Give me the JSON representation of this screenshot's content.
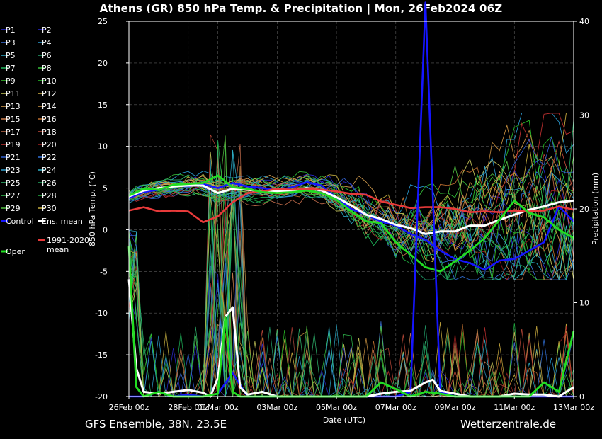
{
  "page": {
    "title": "Athens  (GR)  850 hPa Temp. & Precipitation | Mon, 26Feb2024 06Z",
    "footer_left": "GFS Ensemble, 38N, 23.5E",
    "footer_right": "Wetterzentrale.de"
  },
  "chart_data": {
    "type": "line",
    "xlabel": "Date (UTC)",
    "ylabel": "850 hPa Temp. (°C)",
    "y2label": "Precipitation (mm)",
    "x_ticks": [
      "26Feb 00z",
      "28Feb 00z",
      "01Mar 00z",
      "03Mar 00z",
      "05Mar 00z",
      "07Mar 00z",
      "09Mar 00z",
      "11Mar 00z",
      "13Mar 00z"
    ],
    "x_tick_hours": [
      0,
      48,
      72,
      120,
      168,
      216,
      264,
      312,
      360
    ],
    "x_range_hours": [
      0,
      360
    ],
    "ylim": [
      -20,
      25
    ],
    "y_ticks": [
      25,
      20,
      15,
      10,
      5,
      0,
      -5,
      -10,
      -15,
      -20
    ],
    "y2lim": [
      0,
      40
    ],
    "y2_ticks": [
      40,
      30,
      20,
      10,
      0
    ],
    "grid": true,
    "legend_position": "left",
    "legend": [
      "P1",
      "P2",
      "P3",
      "P4",
      "P5",
      "P6",
      "P7",
      "P8",
      "P9",
      "P10",
      "P11",
      "P12",
      "P13",
      "P14",
      "P15",
      "P16",
      "P17",
      "P18",
      "P19",
      "P20",
      "P21",
      "P22",
      "P23",
      "P24",
      "P25",
      "P26",
      "P27",
      "P28",
      "P29",
      "P30",
      "Control",
      "Ens. mean",
      "1991-2020 mean",
      "Oper"
    ],
    "legend_colors": {
      "P1": "#2b2bd6",
      "P2": "#2b2bd6",
      "P3": "#3b6fd8",
      "P4": "#2a9ad0",
      "P5": "#2aa7c4",
      "P6": "#22a06b",
      "P7": "#1fb55a",
      "P8": "#35c03a",
      "P9": "#36c22a",
      "P10": "#28c428",
      "P11": "#c8c85a",
      "P12": "#d0b040",
      "P13": "#d8a050",
      "P14": "#c89040",
      "P15": "#d08050",
      "P16": "#c07030",
      "P17": "#c06a4a",
      "P18": "#c04a3a",
      "P19": "#c03030",
      "P20": "#a02020",
      "P21": "#3060d0",
      "P22": "#3070d8",
      "P23": "#30a0d0",
      "P24": "#30b0c8",
      "P25": "#30b870",
      "P26": "#20a860",
      "P27": "#30c050",
      "P28": "#20b040",
      "P29": "#50c040",
      "P30": "#c8b040",
      "Control": "#1515ff",
      "Ens. mean": "#ffffff",
      "1991-2020 mean": "#e83a3a",
      "Oper": "#22dd22"
    },
    "series": [
      {
        "name": "Control",
        "axis": "left",
        "x": [
          0,
          12,
          24,
          36,
          48,
          60,
          72,
          84,
          96,
          108,
          120,
          132,
          144,
          156,
          168,
          180,
          192,
          204,
          216,
          228,
          240,
          252,
          264,
          276,
          288,
          300,
          312,
          324,
          336,
          348,
          360
        ],
        "values": [
          3.8,
          4.5,
          4.8,
          5.3,
          5.2,
          5.5,
          5.0,
          5.6,
          5.2,
          5.0,
          4.7,
          5.1,
          5.7,
          5.3,
          3.8,
          2.5,
          1.8,
          1.0,
          0.5,
          -0.5,
          -1.2,
          -2.5,
          -3.5,
          -4.0,
          -4.8,
          -3.7,
          -3.5,
          -2.5,
          -1.5,
          2.8,
          1.0
        ]
      },
      {
        "name": "Ens. mean",
        "axis": "left",
        "x": [
          0,
          12,
          24,
          36,
          48,
          60,
          72,
          84,
          96,
          108,
          120,
          132,
          144,
          156,
          168,
          180,
          192,
          204,
          216,
          228,
          240,
          252,
          264,
          276,
          288,
          300,
          312,
          324,
          336,
          348,
          360
        ],
        "values": [
          4.0,
          4.7,
          5.0,
          5.2,
          5.3,
          5.3,
          4.4,
          4.9,
          4.8,
          4.6,
          4.6,
          4.7,
          5.0,
          4.7,
          3.9,
          2.9,
          1.8,
          1.3,
          0.6,
          0.2,
          -0.5,
          -0.2,
          -0.2,
          0.5,
          0.5,
          1.2,
          1.8,
          2.4,
          2.8,
          3.3,
          3.5
        ]
      },
      {
        "name": "1991-2020 mean",
        "axis": "left",
        "x": [
          0,
          12,
          24,
          36,
          48,
          60,
          72,
          84,
          96,
          108,
          120,
          132,
          144,
          156,
          168,
          180,
          192,
          204,
          216,
          228,
          240,
          252,
          264,
          276,
          288,
          300,
          312,
          324,
          336,
          348,
          360
        ],
        "values": [
          2.3,
          2.7,
          2.2,
          2.3,
          2.2,
          0.9,
          1.6,
          3.3,
          4.4,
          4.6,
          4.9,
          4.8,
          4.9,
          4.8,
          4.6,
          4.3,
          4.2,
          3.4,
          3.0,
          2.6,
          2.7,
          2.7,
          2.5,
          2.1,
          2.2,
          2.1,
          2.3,
          2.2,
          2.3,
          2.8,
          2.4
        ]
      },
      {
        "name": "Oper",
        "axis": "left",
        "x": [
          0,
          12,
          24,
          36,
          48,
          60,
          72,
          84,
          96,
          108,
          120,
          132,
          144,
          156,
          168,
          180,
          192,
          204,
          216,
          228,
          240,
          252,
          264,
          276,
          288,
          300,
          312,
          324,
          336,
          348,
          360
        ],
        "values": [
          4.1,
          4.9,
          4.8,
          5.4,
          5.5,
          5.6,
          6.5,
          5.1,
          4.9,
          4.5,
          4.4,
          4.5,
          4.7,
          4.4,
          3.6,
          2.2,
          1.0,
          0.8,
          -1.5,
          -3.0,
          -4.5,
          -5.0,
          -3.8,
          -2.5,
          -1.0,
          1.2,
          3.5,
          2.0,
          1.5,
          0.0,
          -1.0
        ]
      },
      {
        "name": "Control",
        "axis": "right",
        "x": [
          0,
          12,
          24,
          36,
          48,
          60,
          72,
          84,
          96,
          108,
          120,
          132,
          144,
          156,
          168,
          180,
          192,
          204,
          216,
          228,
          240,
          252,
          264,
          276,
          288,
          300,
          312,
          324,
          336,
          348,
          360
        ],
        "values": [
          0.0,
          0.0,
          0.5,
          0.0,
          0.2,
          0.0,
          0.3,
          2.5,
          0.0,
          0.0,
          0.0,
          0.0,
          0.0,
          0.0,
          0.0,
          0.0,
          0.0,
          0.0,
          0.0,
          0.5,
          42,
          0.5,
          0.0,
          0.0,
          0.0,
          0.0,
          0.0,
          0.0,
          0.0,
          0.0,
          0.0
        ]
      },
      {
        "name": "Ens. mean",
        "axis": "right",
        "x": [
          0,
          6,
          12,
          24,
          36,
          48,
          60,
          66,
          72,
          78,
          84,
          90,
          96,
          108,
          120,
          132,
          144,
          156,
          168,
          180,
          192,
          204,
          216,
          228,
          240,
          246,
          252,
          264,
          276,
          288,
          300,
          312,
          324,
          336,
          348,
          360
        ],
        "values": [
          12.5,
          3.0,
          0.5,
          0.3,
          0.5,
          0.7,
          0.4,
          0.0,
          2.0,
          8.5,
          9.5,
          1.0,
          0.2,
          0.5,
          0.0,
          0.0,
          0.0,
          0.0,
          0.0,
          0.0,
          0.0,
          0.3,
          0.5,
          0.6,
          1.5,
          1.8,
          0.6,
          0.3,
          0.0,
          0.0,
          0.0,
          0.3,
          0.2,
          0.2,
          0.0,
          1.0
        ]
      },
      {
        "name": "Oper",
        "axis": "right",
        "x": [
          0,
          6,
          12,
          24,
          36,
          48,
          60,
          72,
          78,
          84,
          90,
          96,
          108,
          120,
          132,
          144,
          156,
          168,
          180,
          192,
          204,
          216,
          228,
          240,
          252,
          264,
          276,
          288,
          300,
          312,
          324,
          336,
          348,
          360
        ],
        "values": [
          16,
          1.0,
          0.0,
          0.5,
          0.0,
          0.0,
          0.0,
          0.3,
          8.5,
          0.5,
          0.0,
          0.0,
          0.0,
          0.0,
          0.0,
          0.0,
          0.0,
          0.0,
          0.0,
          0.0,
          1.5,
          0.8,
          0.0,
          0.5,
          0.3,
          0.0,
          0.0,
          0.0,
          0.0,
          0.0,
          0.0,
          1.5,
          0.5,
          7.0
        ]
      }
    ]
  }
}
